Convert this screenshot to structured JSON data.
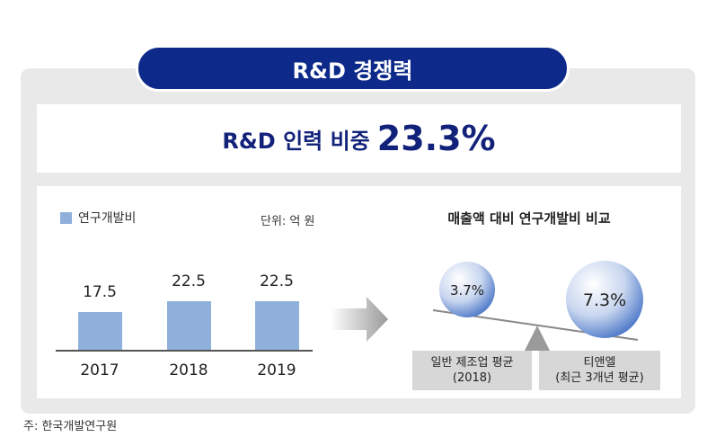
{
  "title": "R&D 경쟁력",
  "headline": {
    "label": "R&D 인력 비중",
    "value": "23.3%"
  },
  "legend": {
    "label": "연구개발비",
    "color": "#8fb0da"
  },
  "unit": "단위: 억 원",
  "comparison": {
    "title": "매출액 대비 연구개발비 비교",
    "left": {
      "value": "3.7%",
      "label_line1": "일반 제조업 평균",
      "label_line2": "(2018)"
    },
    "right": {
      "value": "7.3%",
      "label_line1": "티앤엘",
      "label_line2": "(최근 3개년 평균)"
    }
  },
  "source": "주: 한국개발연구원",
  "chart_data": [
    {
      "type": "bar",
      "categories": [
        "2017",
        "2018",
        "2019"
      ],
      "series": [
        {
          "name": "연구개발비",
          "values": [
            17.5,
            22.5,
            22.5
          ]
        }
      ],
      "ylabel": "단위: 억 원"
    },
    {
      "type": "bar",
      "categories": [
        "일반 제조업 평균 (2018)",
        "티앤엘 (최근 3개년 평균)"
      ],
      "values": [
        3.7,
        7.3
      ],
      "title": "매출액 대비 연구개발비 비교"
    }
  ]
}
